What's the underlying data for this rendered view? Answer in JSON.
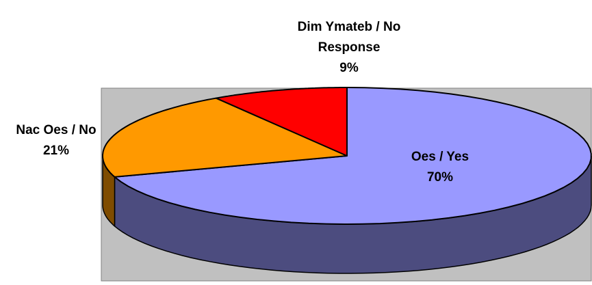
{
  "chart_data": {
    "type": "pie3d",
    "categories": [
      "Oes / Yes",
      "Nac Oes / No",
      "Dim Ymateb / No Response"
    ],
    "values": [
      70,
      21,
      9
    ],
    "value_labels": [
      "70%",
      "21%",
      "9%"
    ],
    "colors": [
      "#9999ff",
      "#ff9900",
      "#ff0000"
    ]
  }
}
